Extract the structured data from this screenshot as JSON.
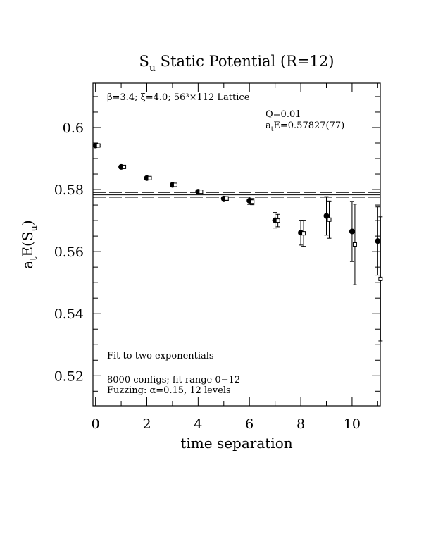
{
  "chart_data": {
    "type": "scatter",
    "title": "S",
    "title_sub": "u",
    "title_rest": " Static Potential (R=12)",
    "xlabel": "time separation",
    "ylabel_main": "a",
    "ylabel_sub1": "t",
    "ylabel_mid": "E(S",
    "ylabel_sub2": "u",
    "ylabel_end": ")",
    "xlim": [
      -0.1,
      11.1
    ],
    "ylim": [
      0.5103,
      0.6143
    ],
    "xticks_major": [
      0,
      2,
      4,
      6,
      8,
      10
    ],
    "xtick_labels": [
      "0",
      "2",
      "4",
      "6",
      "8",
      "10"
    ],
    "yticks_major": [
      0.52,
      0.54,
      0.56,
      0.58,
      0.6
    ],
    "ytick_labels": [
      "0.52",
      "0.54",
      "0.56",
      "0.58",
      "0.6"
    ],
    "annotation_top_left": "β=3.4; ξ=4.0; 56³×112 Lattice",
    "annotation_q": "Q=0.01",
    "annotation_e_prefix": "a",
    "annotation_e_sub": "t",
    "annotation_e_rest": "E=0.57827(77)",
    "annotation_fit": "Fit to two exponentials",
    "annotation_configs": "8000 configs; fit range 0−12",
    "annotation_fuzzing": "Fuzzing: α=0.15, 12 levels",
    "fit_value": 0.57827,
    "fit_error": 0.00077,
    "series": [
      {
        "marker": "filled-circle",
        "x": [
          0,
          1,
          2,
          3,
          4,
          5,
          6,
          7,
          8,
          9,
          10,
          11
        ],
        "y": [
          0.5942,
          0.5873,
          0.5837,
          0.5815,
          0.5793,
          0.5771,
          0.5764,
          0.5701,
          0.5661,
          0.5715,
          0.5665,
          0.5634
        ],
        "err": [
          0.0003,
          0.0003,
          0.0004,
          0.0004,
          0.0005,
          0.0006,
          0.0012,
          0.0025,
          0.004,
          0.0062,
          0.0097,
          0.011
        ]
      },
      {
        "marker": "open-square",
        "x": [
          0,
          1,
          2,
          3,
          4,
          5,
          6,
          7,
          8,
          9,
          10,
          11
        ],
        "y": [
          0.5942,
          0.5873,
          0.5837,
          0.5815,
          0.5793,
          0.5771,
          0.5761,
          0.57,
          0.5659,
          0.5703,
          0.5623,
          0.5512
        ],
        "err": [
          0.0003,
          0.0003,
          0.0004,
          0.0004,
          0.0005,
          0.0006,
          0.001,
          0.002,
          0.0042,
          0.006,
          0.013,
          0.02
        ]
      }
    ]
  }
}
